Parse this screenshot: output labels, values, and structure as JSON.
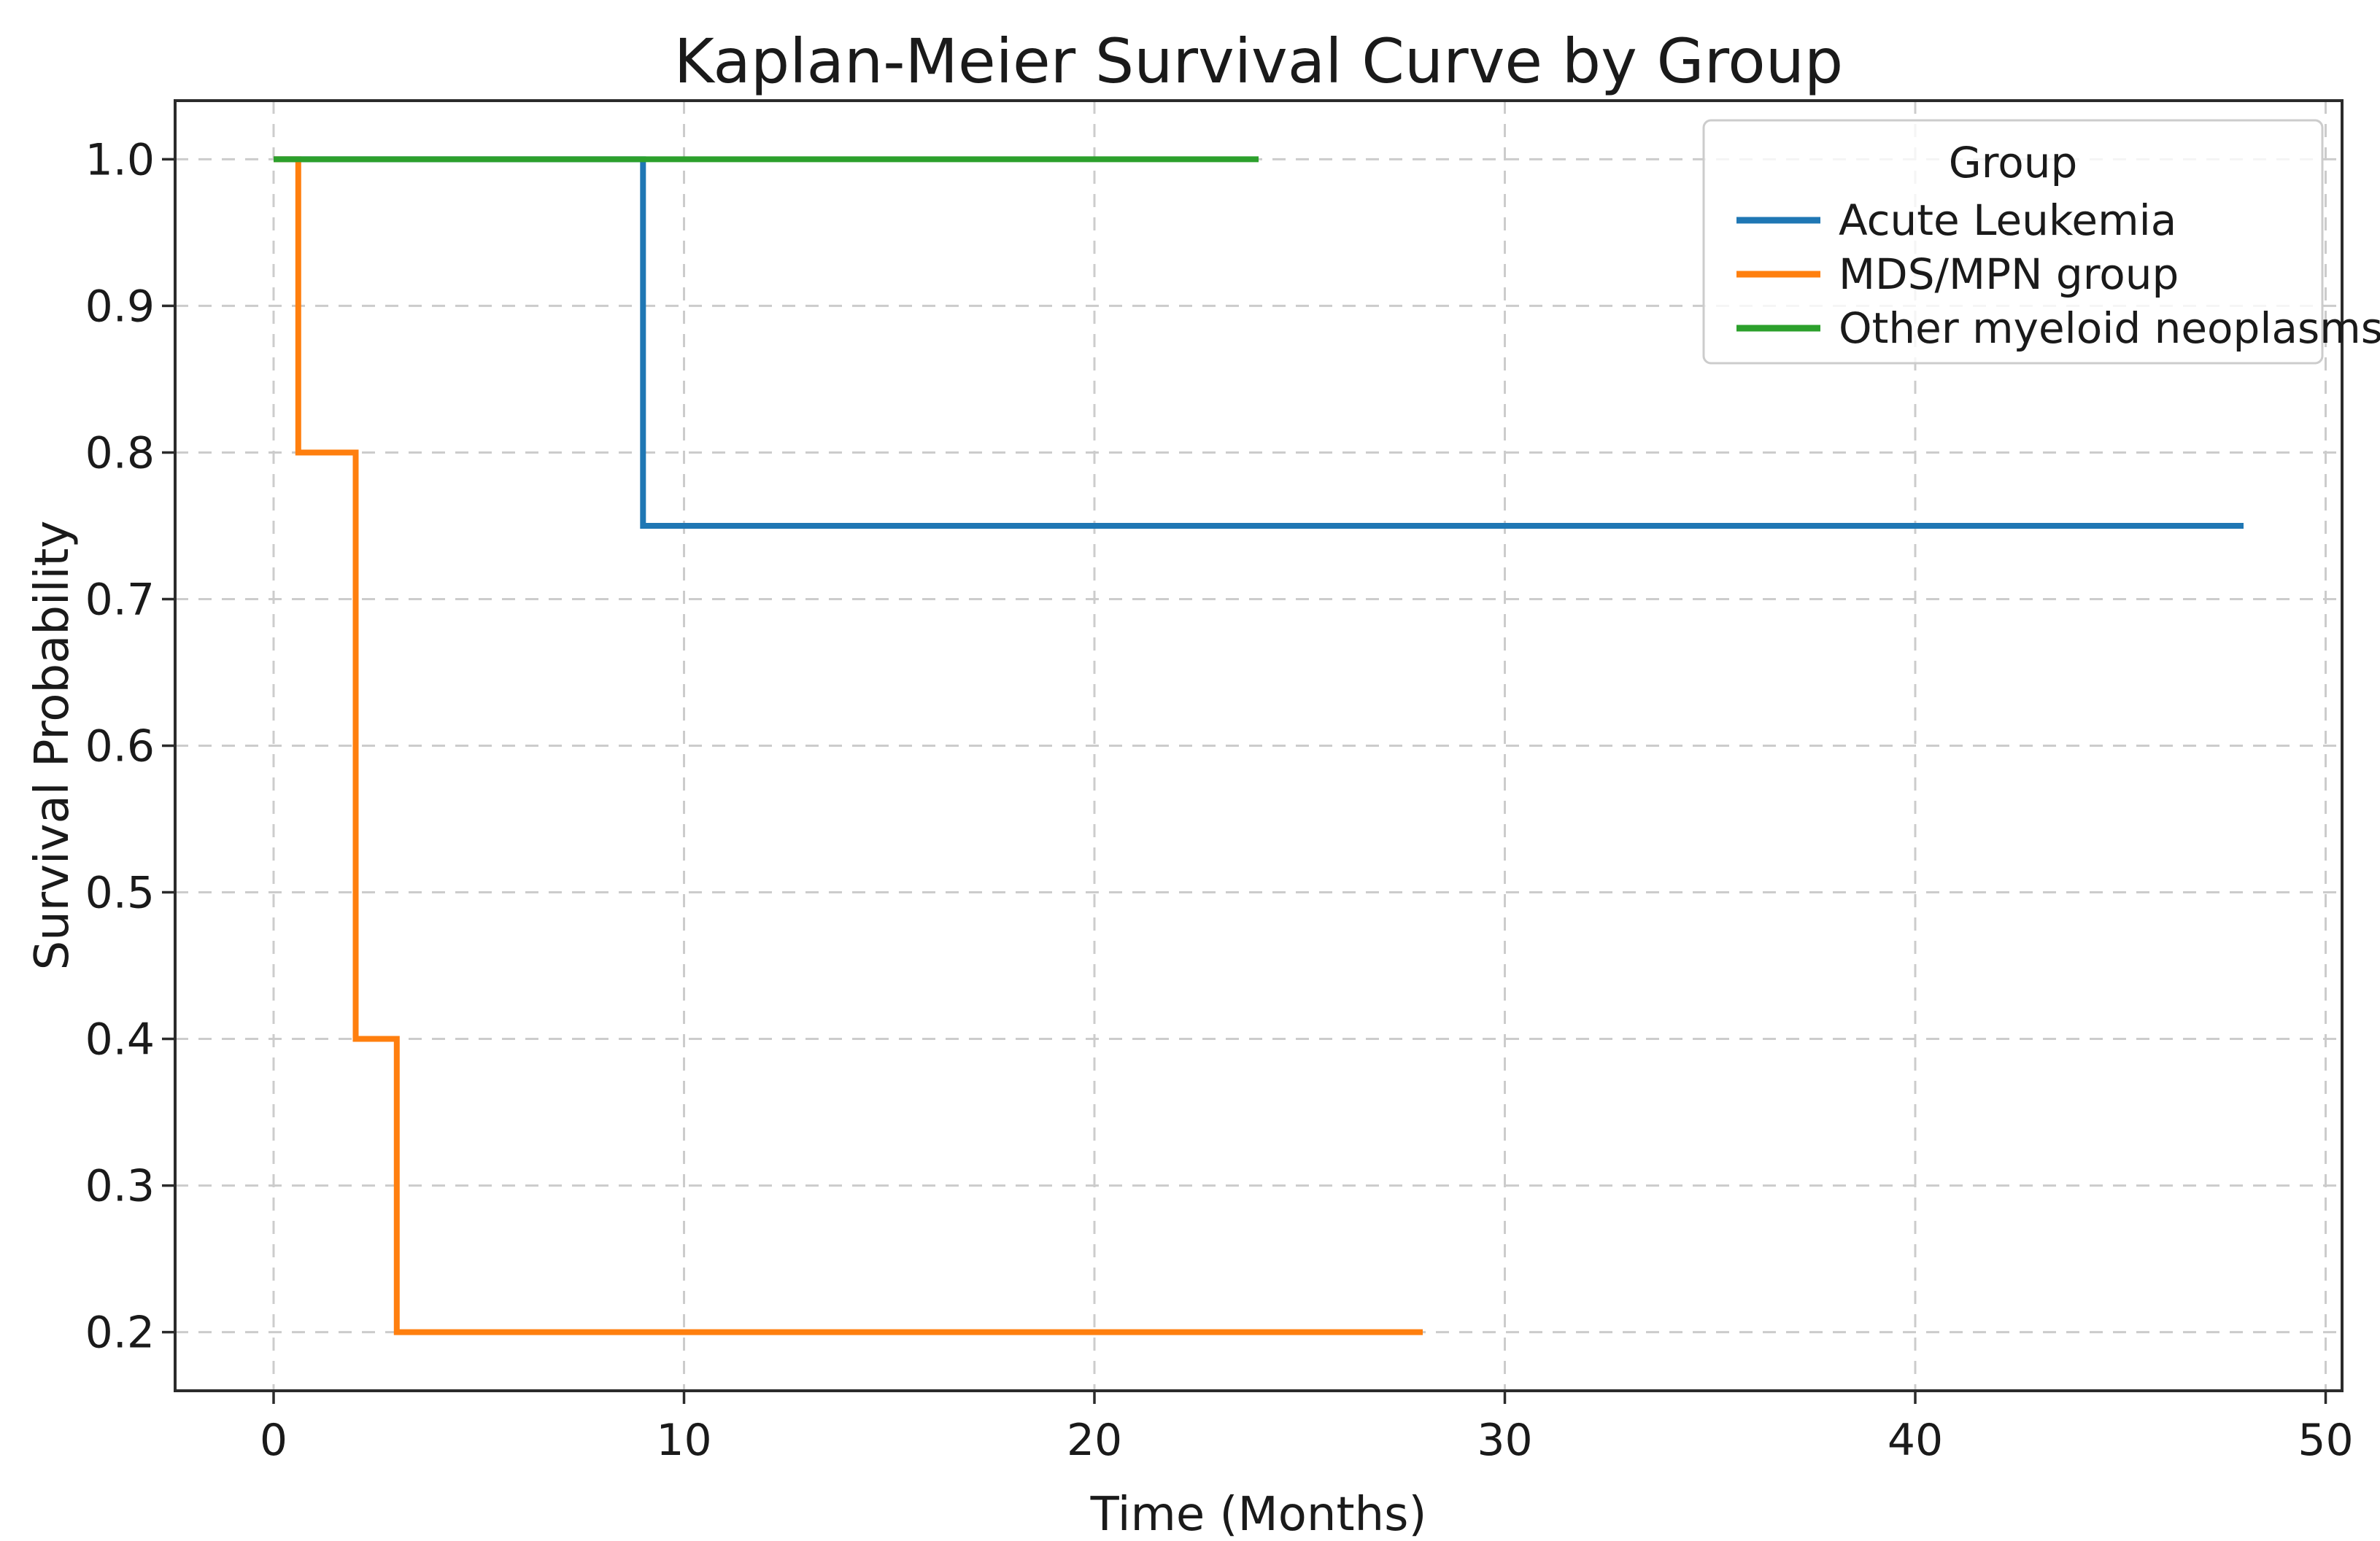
{
  "figure": {
    "title": "Kaplan-Meier Survival Curve by Group",
    "xlabel": "Time (Months)",
    "ylabel": "Survival Probability"
  },
  "legend": {
    "title": "Group",
    "entries": [
      {
        "label": "Acute Leukemia",
        "color": "#1f77b4"
      },
      {
        "label": "MDS/MPN group",
        "color": "#ff7f0e"
      },
      {
        "label": "Other myeloid neoplasms",
        "color": "#2ca02c"
      }
    ]
  },
  "chart_data": {
    "type": "line",
    "subtype": "kaplan-meier-step",
    "title": "Kaplan-Meier Survival Curve by Group",
    "xlabel": "Time (Months)",
    "ylabel": "Survival Probability",
    "xlim": [
      -2.4,
      50.4
    ],
    "ylim": [
      0.16,
      1.04
    ],
    "x_ticks": [
      0,
      10,
      20,
      30,
      40,
      50
    ],
    "x_tick_labels": [
      "0",
      "10",
      "20",
      "30",
      "40",
      "50"
    ],
    "y_ticks": [
      0.2,
      0.3,
      0.4,
      0.5,
      0.6,
      0.7,
      0.8,
      0.9,
      1.0
    ],
    "y_tick_labels": [
      "0.2",
      "0.3",
      "0.4",
      "0.5",
      "0.6",
      "0.7",
      "0.8",
      "0.9",
      "1.0"
    ],
    "grid": true,
    "grid_style": "dashed",
    "legend_title": "Group",
    "legend_position": "upper right",
    "series": [
      {
        "name": "Acute Leukemia",
        "color": "#1f77b4",
        "points": [
          [
            0,
            1.0
          ],
          [
            9,
            1.0
          ],
          [
            9,
            0.75
          ],
          [
            48,
            0.75
          ]
        ]
      },
      {
        "name": "MDS/MPN group",
        "color": "#ff7f0e",
        "points": [
          [
            0,
            1.0
          ],
          [
            0.6,
            1.0
          ],
          [
            0.6,
            0.8
          ],
          [
            2,
            0.8
          ],
          [
            2,
            0.4
          ],
          [
            3,
            0.4
          ],
          [
            3,
            0.2
          ],
          [
            28,
            0.2
          ]
        ]
      },
      {
        "name": "Other myeloid neoplasms",
        "color": "#2ca02c",
        "points": [
          [
            0,
            1.0
          ],
          [
            24,
            1.0
          ]
        ]
      }
    ]
  },
  "style": {
    "curve_width": 8,
    "swatch_width": 9,
    "text_color": "#1a1a1a",
    "spine_color": "#2b2b2b",
    "grid_color": "#cccccc",
    "tick_font_size": 60,
    "legend_font_size": 58,
    "background": "#ffffff"
  }
}
